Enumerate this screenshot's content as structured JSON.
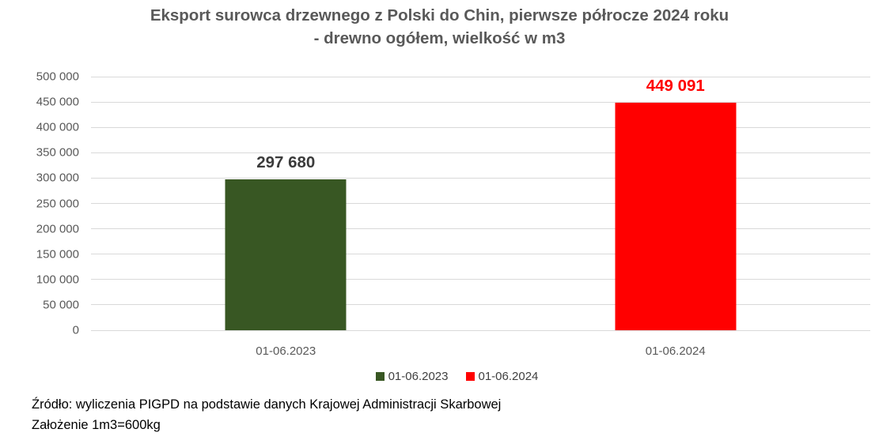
{
  "title": {
    "line1": "Eksport surowca drzewnego z Polski do Chin, pierwsze półrocze 2024 roku",
    "line2": "-  drewno ogółem, wielkość w m3"
  },
  "footer": {
    "source": "Źródło: wyliczenia PIGPD na podstawie danych Krajowej Administracji Skarbowej",
    "assumption": "Założenie 1m3=600kg"
  },
  "colors": {
    "title_text": "#595959",
    "axis_text": "#595959",
    "gridline": "#d9d9d9",
    "legend_text": "#404040",
    "bar_green": "#385723",
    "bar_red": "#ff0000"
  },
  "chart_data": {
    "type": "bar",
    "title": "Eksport surowca drzewnego z Polski do Chin, pierwsze półrocze 2024 roku -  drewno ogółem, wielkość w m3",
    "categories": [
      "01-06.2023",
      "01-06.2024"
    ],
    "values": [
      297680,
      449091
    ],
    "value_labels": [
      "297 680",
      "449 091"
    ],
    "bar_colors": [
      "#385723",
      "#ff0000"
    ],
    "value_label_colors": [
      "#3b3b3b",
      "#ff0000"
    ],
    "xlabel": "",
    "ylabel": "",
    "ylim": [
      0,
      500000
    ],
    "ytick_step": 50000,
    "ytick_labels": [
      "500 000",
      "450 000",
      "400 000",
      "350 000",
      "300 000",
      "250 000",
      "200 000",
      "150 000",
      "100 000",
      "50 000",
      "0"
    ],
    "grid": true,
    "legend_position": "bottom",
    "legend": [
      {
        "label": "01-06.2023",
        "color": "#385723"
      },
      {
        "label": "01-06.2024",
        "color": "#ff0000"
      }
    ]
  }
}
